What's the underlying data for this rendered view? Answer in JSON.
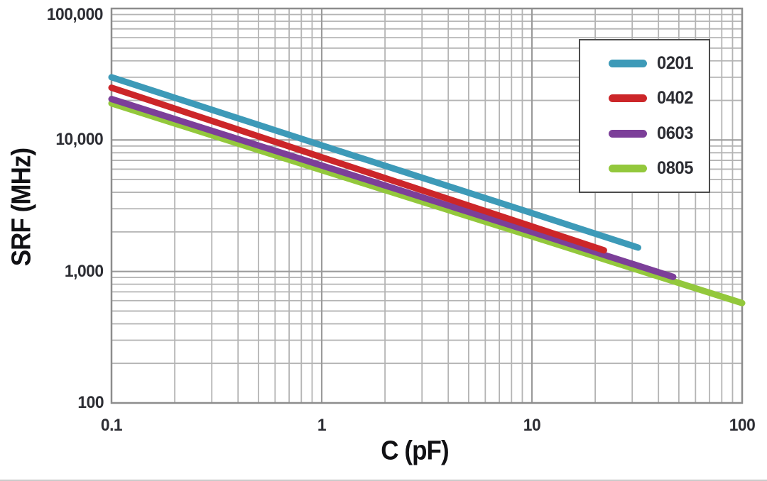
{
  "chart_data": {
    "type": "line",
    "title": "",
    "xlabel": "C (pF)",
    "ylabel": "SRF (MHz)",
    "x_scale": "log",
    "y_scale": "log",
    "xlim": [
      0.1,
      100
    ],
    "ylim": [
      100,
      100000
    ],
    "grid": "log major and minor gridlines, gray, both axes",
    "legend_position": "upper right",
    "xticks": [
      {
        "label": "0.1",
        "value": 0.1
      },
      {
        "label": "1",
        "value": 1
      },
      {
        "label": "10",
        "value": 10
      },
      {
        "label": "100",
        "value": 100
      }
    ],
    "yticks": [
      {
        "label": "100,000",
        "value": 100000
      },
      {
        "label": "10,000",
        "value": 10000
      },
      {
        "label": "1,000",
        "value": 1000
      },
      {
        "label": "100",
        "value": 100
      }
    ],
    "series": [
      {
        "name": "0201",
        "color": "#3d9ab8",
        "points": [
          [
            0.1,
            30000
          ],
          [
            1,
            9100
          ],
          [
            10,
            2780
          ],
          [
            32,
            1520
          ]
        ]
      },
      {
        "name": "0402",
        "color": "#cc2629",
        "points": [
          [
            0.1,
            25000
          ],
          [
            1,
            7400
          ],
          [
            10,
            2200
          ],
          [
            22,
            1450
          ]
        ]
      },
      {
        "name": "0603",
        "color": "#7c3f99",
        "points": [
          [
            0.1,
            20500
          ],
          [
            1,
            6400
          ],
          [
            10,
            2000
          ],
          [
            47,
            910
          ]
        ]
      },
      {
        "name": "0805",
        "color": "#93c83c",
        "points": [
          [
            0.1,
            19000
          ],
          [
            1,
            5900
          ],
          [
            10,
            1850
          ],
          [
            100,
            575
          ]
        ]
      }
    ],
    "grid_colors": {
      "minor": "#b4b4b4",
      "major": "#9b9b9b",
      "border": "#8d8d8d"
    }
  }
}
